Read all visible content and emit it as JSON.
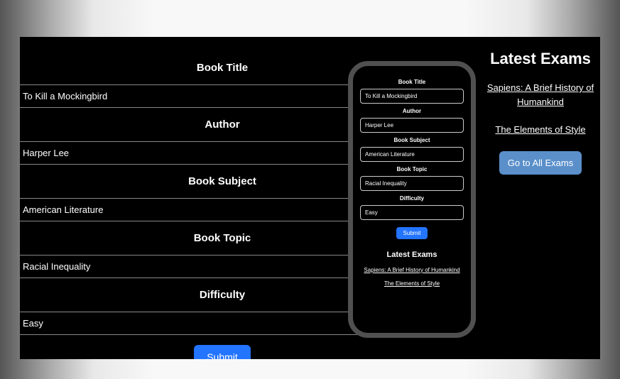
{
  "form": {
    "fields": [
      {
        "label": "Book Title",
        "value": "To Kill a Mockingbird"
      },
      {
        "label": "Author",
        "value": "Harper Lee"
      },
      {
        "label": "Book Subject",
        "value": "American Literature"
      },
      {
        "label": "Book Topic",
        "value": "Racial Inequality"
      },
      {
        "label": "Difficulty",
        "value": "Easy"
      }
    ],
    "submit_label": "Submit"
  },
  "phone": {
    "fields": [
      {
        "label": "Book Title",
        "value": "To Kill a Mockingbird"
      },
      {
        "label": "Author",
        "value": "Harper Lee"
      },
      {
        "label": "Book Subject",
        "value": "American Literature"
      },
      {
        "label": "Book Topic",
        "value": "Racial Inequality"
      },
      {
        "label": "Difficulty",
        "value": "Easy"
      }
    ],
    "submit_label": "Submit",
    "latest_heading": "Latest Exams",
    "links": [
      "Sapiens: A Brief History of Humankind",
      "The Elements of Style"
    ]
  },
  "sidebar": {
    "heading": "Latest Exams",
    "links": [
      "Sapiens: A Brief History of Humankind",
      "The Elements of Style"
    ],
    "all_exams_label": "Go to All Exams"
  },
  "colors": {
    "canvas_bg": "#000000",
    "text": "#ffffff",
    "primary_button": "#2374ff",
    "sidebar_button": "#5a8fca",
    "input_border": "#888888",
    "phone_frame": "#505050"
  }
}
